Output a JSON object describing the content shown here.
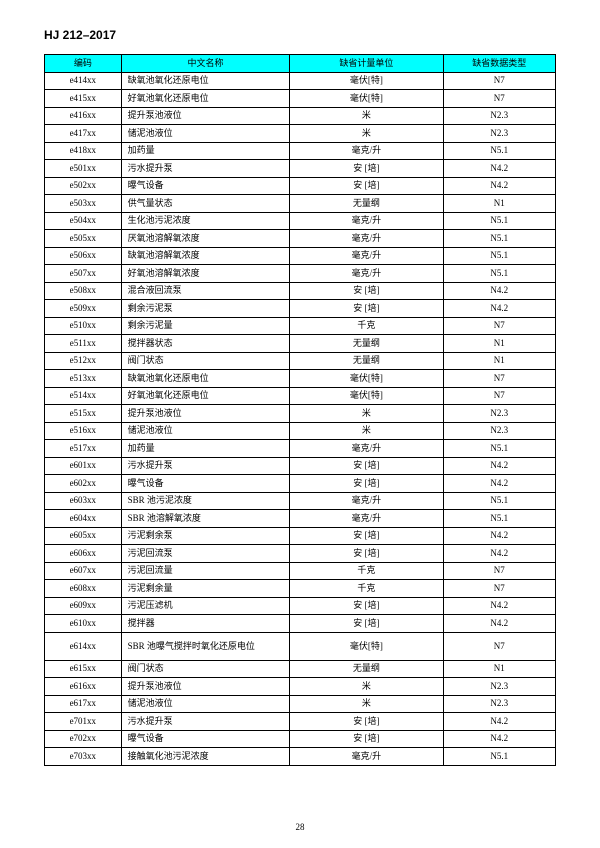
{
  "doc": {
    "header": "HJ 212–2017",
    "page_number": "28"
  },
  "table": {
    "columns": [
      "编码",
      "中文名称",
      "缺省计量单位",
      "缺省数据类型"
    ],
    "rows": [
      {
        "code": "e414xx",
        "name": "缺氧池氧化还原电位",
        "unit": "毫伏[特]",
        "type": "N7"
      },
      {
        "code": "e415xx",
        "name": "好氧池氧化还原电位",
        "unit": "毫伏[特]",
        "type": "N7"
      },
      {
        "code": "e416xx",
        "name": "提升泵池液位",
        "unit": "米",
        "type": "N2.3"
      },
      {
        "code": "e417xx",
        "name": "储泥池液位",
        "unit": "米",
        "type": "N2.3"
      },
      {
        "code": "e418xx",
        "name": "加药量",
        "unit": "毫克/升",
        "type": "N5.1"
      },
      {
        "code": "e501xx",
        "name": "污水提升泵",
        "unit": "安 [培]",
        "type": "N4.2"
      },
      {
        "code": "e502xx",
        "name": "曝气设备",
        "unit": "安 [培]",
        "type": "N4.2"
      },
      {
        "code": "e503xx",
        "name": "供气量状态",
        "unit": "无量纲",
        "type": "N1"
      },
      {
        "code": "e504xx",
        "name": "生化池污泥浓度",
        "unit": "毫克/升",
        "type": "N5.1"
      },
      {
        "code": "e505xx",
        "name": "厌氧池溶解氧浓度",
        "unit": "毫克/升",
        "type": "N5.1"
      },
      {
        "code": "e506xx",
        "name": "缺氧池溶解氧浓度",
        "unit": "毫克/升",
        "type": "N5.1"
      },
      {
        "code": "e507xx",
        "name": "好氧池溶解氧浓度",
        "unit": "毫克/升",
        "type": "N5.1"
      },
      {
        "code": "e508xx",
        "name": "混合液回流泵",
        "unit": "安 [培]",
        "type": "N4.2"
      },
      {
        "code": "e509xx",
        "name": "剩余污泥泵",
        "unit": "安 [培]",
        "type": "N4.2"
      },
      {
        "code": "e510xx",
        "name": "剩余污泥量",
        "unit": "千克",
        "type": "N7"
      },
      {
        "code": "e511xx",
        "name": "搅拌器状态",
        "unit": "无量纲",
        "type": "N1"
      },
      {
        "code": "e512xx",
        "name": "阀门状态",
        "unit": "无量纲",
        "type": "N1"
      },
      {
        "code": "e513xx",
        "name": "缺氧池氧化还原电位",
        "unit": "毫伏[特]",
        "type": "N7"
      },
      {
        "code": "e514xx",
        "name": "好氧池氧化还原电位",
        "unit": "毫伏[特]",
        "type": "N7"
      },
      {
        "code": "e515xx",
        "name": "提升泵池液位",
        "unit": "米",
        "type": "N2.3"
      },
      {
        "code": "e516xx",
        "name": "储泥池液位",
        "unit": "米",
        "type": "N2.3"
      },
      {
        "code": "e517xx",
        "name": "加药量",
        "unit": "毫克/升",
        "type": "N5.1"
      },
      {
        "code": "e601xx",
        "name": "污水提升泵",
        "unit": "安 [培]",
        "type": "N4.2"
      },
      {
        "code": "e602xx",
        "name": "曝气设备",
        "unit": "安 [培]",
        "type": "N4.2"
      },
      {
        "code": "e603xx",
        "name": "SBR 池污泥浓度",
        "unit": "毫克/升",
        "type": "N5.1"
      },
      {
        "code": "e604xx",
        "name": "SBR 池溶解氧浓度",
        "unit": "毫克/升",
        "type": "N5.1"
      },
      {
        "code": "e605xx",
        "name": "污泥剩余泵",
        "unit": "安 [培]",
        "type": "N4.2"
      },
      {
        "code": "e606xx",
        "name": "污泥回流泵",
        "unit": "安 [培]",
        "type": "N4.2"
      },
      {
        "code": "e607xx",
        "name": "污泥回流量",
        "unit": "千克",
        "type": "N7"
      },
      {
        "code": "e608xx",
        "name": "污泥剩余量",
        "unit": "千克",
        "type": "N7"
      },
      {
        "code": "e609xx",
        "name": "污泥压滤机",
        "unit": "安 [培]",
        "type": "N4.2"
      },
      {
        "code": "e610xx",
        "name": "搅拌器",
        "unit": "安 [培]",
        "type": "N4.2"
      },
      {
        "code": "e614xx",
        "name": "SBR 池曝气搅拌时氧化还原电位",
        "unit": "毫伏[特]",
        "type": "N7",
        "tall": true
      },
      {
        "code": "e615xx",
        "name": "阀门状态",
        "unit": "无量纲",
        "type": "N1"
      },
      {
        "code": "e616xx",
        "name": "提升泵池液位",
        "unit": "米",
        "type": "N2.3"
      },
      {
        "code": "e617xx",
        "name": "储泥池液位",
        "unit": "米",
        "type": "N2.3"
      },
      {
        "code": "e701xx",
        "name": "污水提升泵",
        "unit": "安 [培]",
        "type": "N4.2"
      },
      {
        "code": "e702xx",
        "name": "曝气设备",
        "unit": "安 [培]",
        "type": "N4.2"
      },
      {
        "code": "e703xx",
        "name": "接触氧化池污泥浓度",
        "unit": "毫克/升",
        "type": "N5.1"
      }
    ]
  }
}
